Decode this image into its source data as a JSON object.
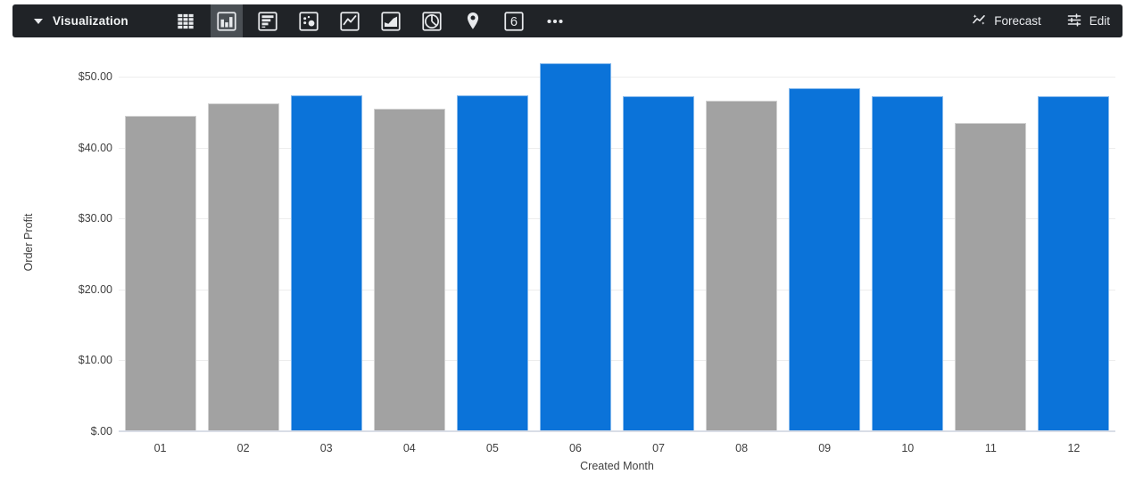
{
  "toolbar": {
    "title": "Visualization",
    "chart_types": [
      {
        "name": "table",
        "selected": false
      },
      {
        "name": "column",
        "selected": true
      },
      {
        "name": "bar",
        "selected": false
      },
      {
        "name": "scatter",
        "selected": false
      },
      {
        "name": "line",
        "selected": false
      },
      {
        "name": "area",
        "selected": false
      },
      {
        "name": "pie",
        "selected": false
      },
      {
        "name": "map",
        "selected": false
      },
      {
        "name": "single-value",
        "selected": false,
        "glyph": "6"
      },
      {
        "name": "more",
        "selected": false
      }
    ],
    "forecast_label": "Forecast",
    "edit_label": "Edit"
  },
  "chart_data": {
    "type": "bar",
    "xlabel": "Created Month",
    "ylabel": "Order Profit",
    "categories": [
      "01",
      "02",
      "03",
      "04",
      "05",
      "06",
      "07",
      "08",
      "09",
      "10",
      "11",
      "12"
    ],
    "values": [
      44.4,
      46.2,
      47.4,
      45.5,
      47.4,
      51.9,
      47.2,
      46.6,
      48.4,
      47.2,
      43.5,
      47.2
    ],
    "bar_colors": [
      "#a2a2a2",
      "#a2a2a2",
      "#0b73d9",
      "#a2a2a2",
      "#0b73d9",
      "#0b73d9",
      "#0b73d9",
      "#a2a2a2",
      "#0b73d9",
      "#0b73d9",
      "#a2a2a2",
      "#0b73d9"
    ],
    "y_ticks": [
      "$.00",
      "$10.00",
      "$20.00",
      "$30.00",
      "$40.00",
      "$50.00"
    ],
    "y_tick_values": [
      0,
      10,
      20,
      30,
      40,
      50
    ],
    "ylim": [
      0,
      53
    ],
    "grid": true,
    "legend": false
  },
  "colors": {
    "toolbar_bg": "#202327",
    "selected_chart_type_bg": "#4a4f54",
    "bar_blue": "#0b73d9",
    "bar_gray": "#a2a2a2",
    "gridline": "#ededed",
    "axis_line": "#d9dde6"
  }
}
